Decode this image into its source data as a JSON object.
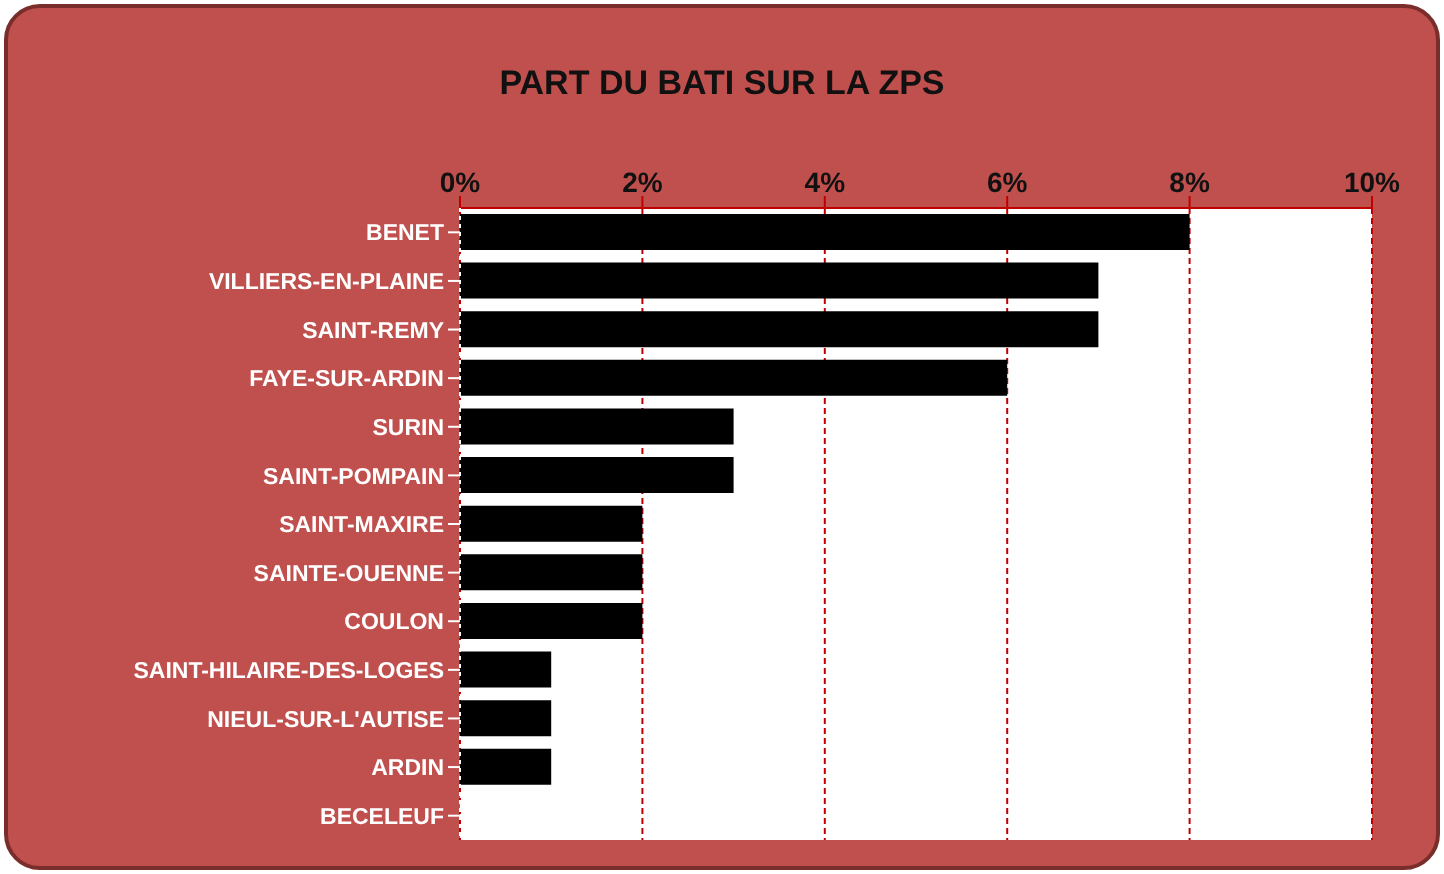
{
  "chart_data": {
    "type": "bar",
    "orientation": "horizontal",
    "title": "PART DU BATI SUR LA ZPS",
    "categories": [
      "BENET",
      "VILLIERS-EN-PLAINE",
      "SAINT-REMY",
      "FAYE-SUR-ARDIN",
      "SURIN",
      "SAINT-POMPAIN",
      "SAINT-MAXIRE",
      "SAINTE-OUENNE",
      "COULON",
      "SAINT-HILAIRE-DES-LOGES",
      "NIEUL-SUR-L'AUTISE",
      "ARDIN",
      "BECELEUF"
    ],
    "values": [
      8,
      7,
      7,
      6,
      3,
      3,
      2,
      2,
      2,
      1,
      1,
      1,
      0
    ],
    "color": "#000000",
    "xlim": [
      0,
      10
    ],
    "xticks": [
      {
        "value": 0,
        "label": "0%"
      },
      {
        "value": 2,
        "label": "2%"
      },
      {
        "value": 4,
        "label": "4%"
      },
      {
        "value": 6,
        "label": "6%"
      },
      {
        "value": 8,
        "label": "8%"
      },
      {
        "value": 10,
        "label": "10%"
      }
    ],
    "grid": "x",
    "legend": false
  }
}
